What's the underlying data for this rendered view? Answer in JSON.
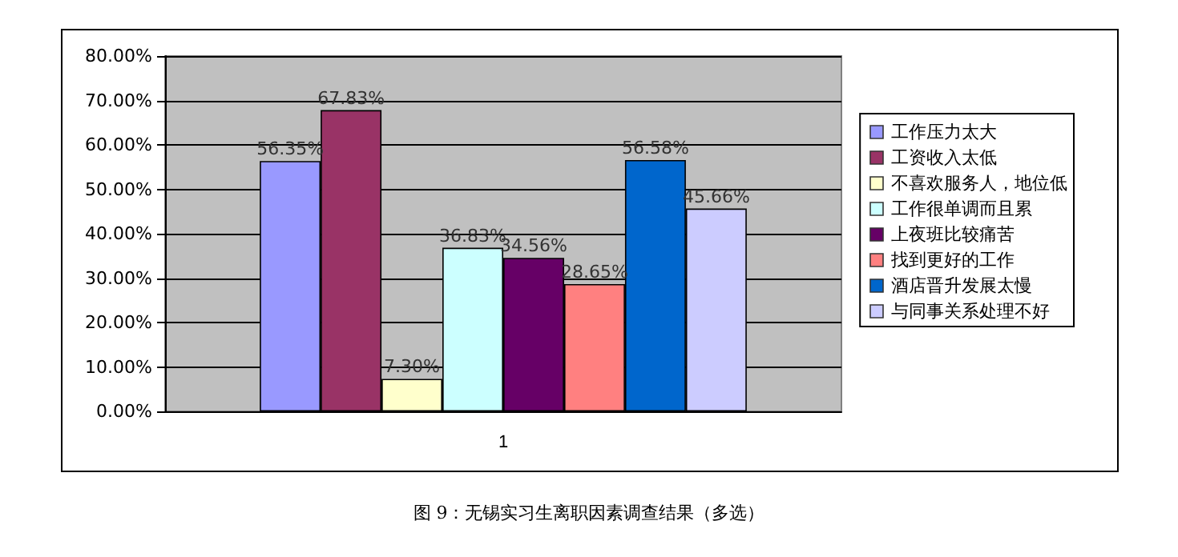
{
  "chart_data": {
    "type": "bar",
    "categories": [
      "1"
    ],
    "series": [
      {
        "name": "工作压力太大",
        "color": "#9999ff",
        "values": [
          56.35
        ],
        "value_labels": [
          "56.35%"
        ]
      },
      {
        "name": "工资收入太低",
        "color": "#993366",
        "values": [
          67.83
        ],
        "value_labels": [
          "67.83%"
        ]
      },
      {
        "name": "不喜欢服务人，地位低",
        "color": "#ffffcc",
        "values": [
          7.3
        ],
        "value_labels": [
          "7.30%"
        ]
      },
      {
        "name": "工作很单调而且累",
        "color": "#ccffff",
        "values": [
          36.83
        ],
        "value_labels": [
          "36.83%"
        ]
      },
      {
        "name": "上夜班比较痛苦",
        "color": "#660066",
        "values": [
          34.56
        ],
        "value_labels": [
          "34.56%"
        ]
      },
      {
        "name": "找到更好的工作",
        "color": "#ff8080",
        "values": [
          28.65
        ],
        "value_labels": [
          "28.65%"
        ]
      },
      {
        "name": "酒店晋升发展太慢",
        "color": "#0066cc",
        "values": [
          56.58
        ],
        "value_labels": [
          "56.58%"
        ]
      },
      {
        "name": "与同事关系处理不好",
        "color": "#ccccff",
        "values": [
          45.66
        ],
        "value_labels": [
          "45.66%"
        ]
      }
    ],
    "ylim": [
      0,
      80
    ],
    "yticks": [
      {
        "value": 0,
        "label": "0.00%"
      },
      {
        "value": 10,
        "label": "10.00%"
      },
      {
        "value": 20,
        "label": "20.00%"
      },
      {
        "value": 30,
        "label": "30.00%"
      },
      {
        "value": 40,
        "label": "40.00%"
      },
      {
        "value": 50,
        "label": "50.00%"
      },
      {
        "value": 60,
        "label": "60.00%"
      },
      {
        "value": 70,
        "label": "70.00%"
      },
      {
        "value": 80,
        "label": "80.00%"
      }
    ],
    "grid": "y",
    "legend": "right",
    "annotations": [
      "图 9：无锡实习生离职因素调查结果（多选）"
    ]
  }
}
